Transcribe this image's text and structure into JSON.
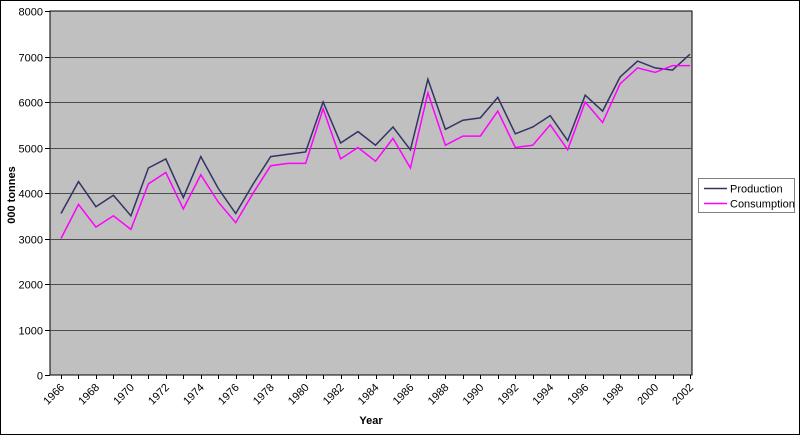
{
  "chart_data": {
    "type": "line",
    "title": "",
    "xlabel": "Year",
    "ylabel": "000 tonnes",
    "ylim": [
      0,
      8000
    ],
    "y_ticks": [
      0,
      1000,
      2000,
      3000,
      4000,
      5000,
      6000,
      7000,
      8000
    ],
    "x": [
      1966,
      1967,
      1968,
      1969,
      1970,
      1971,
      1972,
      1973,
      1974,
      1975,
      1976,
      1977,
      1978,
      1979,
      1980,
      1981,
      1982,
      1983,
      1984,
      1985,
      1986,
      1987,
      1988,
      1989,
      1990,
      1991,
      1992,
      1993,
      1994,
      1995,
      1996,
      1997,
      1998,
      1999,
      2000,
      2001,
      2002
    ],
    "x_tick_labels": [
      "1966",
      "1968",
      "1970",
      "1972",
      "1974",
      "1976",
      "1978",
      "1980",
      "1982",
      "1984",
      "1986",
      "1988",
      "1990",
      "1992",
      "1994",
      "1996",
      "1998",
      "2000",
      "2002"
    ],
    "grid": "horizontal",
    "legend_position": "right",
    "colors": {
      "plot_background": "#c0c0c0",
      "gridline": "#4d4d4d",
      "axis": "#000000",
      "frame_border": "#000000",
      "legend_background": "#ffffff",
      "legend_border": "#808080"
    },
    "series": [
      {
        "name": "Production",
        "color": "#333366",
        "values": [
          3550,
          4250,
          3700,
          3950,
          3500,
          4550,
          4750,
          3900,
          4800,
          4100,
          3550,
          4200,
          4800,
          4850,
          4900,
          6000,
          5100,
          5350,
          5050,
          5450,
          4950,
          6500,
          5400,
          5600,
          5650,
          6100,
          5300,
          5450,
          5700,
          5150,
          6150,
          5800,
          6550,
          6900,
          6750,
          6700,
          7050
        ]
      },
      {
        "name": "Consumption",
        "color": "#ff00ff",
        "values": [
          3000,
          3750,
          3250,
          3500,
          3200,
          4200,
          4450,
          3650,
          4400,
          3800,
          3350,
          4000,
          4600,
          4650,
          4650,
          5850,
          4750,
          5000,
          4700,
          5200,
          4550,
          6200,
          5050,
          5250,
          5250,
          5800,
          5000,
          5050,
          5500,
          4950,
          6000,
          5550,
          6400,
          6750,
          6650,
          6800,
          6800
        ]
      }
    ]
  }
}
